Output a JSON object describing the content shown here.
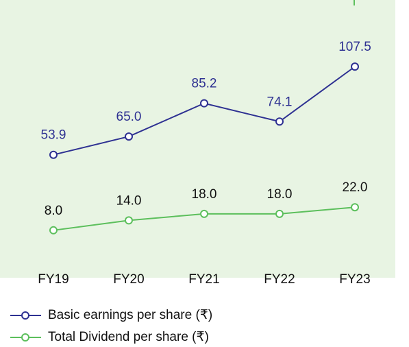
{
  "chart_data": {
    "type": "line",
    "categories": [
      "FY19",
      "FY20",
      "FY21",
      "FY22",
      "FY23"
    ],
    "series": [
      {
        "name": "Basic earnings per share (₹)",
        "color": "#2e3192",
        "values": [
          53.9,
          65,
          85.2,
          74.1,
          107.5
        ],
        "value_labels": [
          "53.9",
          "65.0",
          "85.2",
          "74.1",
          "107.5"
        ]
      },
      {
        "name": "Total Dividend per share (₹)",
        "color": "#5cbf5c",
        "values": [
          8,
          14,
          18,
          18,
          22
        ],
        "value_labels": [
          "8.0",
          "14.0",
          "18.0",
          "18.0",
          "22.0"
        ]
      }
    ],
    "ylim": [
      0,
      148
    ],
    "legend": "bottom"
  }
}
